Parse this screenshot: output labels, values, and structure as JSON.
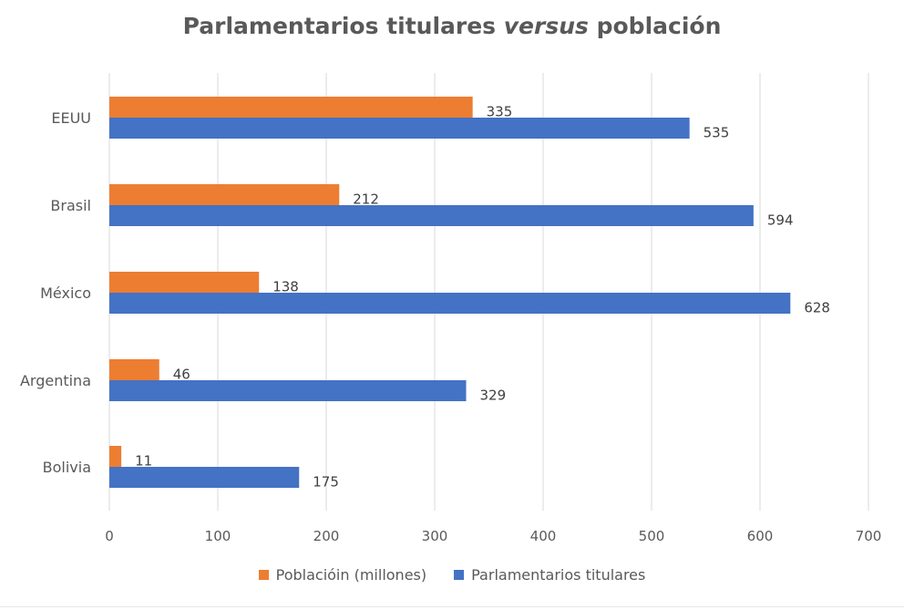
{
  "chart_data": {
    "type": "bar",
    "orientation": "horizontal",
    "title": {
      "part1": "Parlamentarios titulares ",
      "part2": "versus",
      "part3": " población"
    },
    "categories": [
      "EEUU",
      "Brasil",
      "México",
      "Argentina",
      "Bolivia"
    ],
    "series": [
      {
        "name": "Poblacióin (millones)",
        "color": "#ed7d31",
        "values": [
          335,
          212,
          138,
          46,
          11
        ]
      },
      {
        "name": "Parlamentarios titulares",
        "color": "#4472c4",
        "values": [
          535,
          594,
          628,
          329,
          175
        ]
      }
    ],
    "xlim": [
      0,
      700
    ],
    "xticks": [
      0,
      100,
      200,
      300,
      400,
      500,
      600,
      700
    ],
    "grid": true,
    "legend_position": "bottom"
  }
}
